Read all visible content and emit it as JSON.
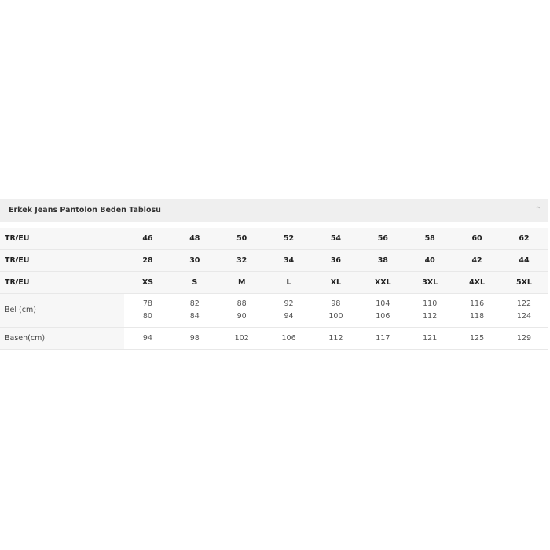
{
  "title": "Erkek Jeans Pantolon Beden Tablosu",
  "icons": {
    "toggle": "chevron-up-icon"
  },
  "rows": [
    {
      "label": "TR/EU",
      "values": [
        "46",
        "48",
        "50",
        "52",
        "54",
        "56",
        "58",
        "60",
        "62"
      ]
    },
    {
      "label": "TR/EU",
      "values": [
        "28",
        "30",
        "32",
        "34",
        "36",
        "38",
        "40",
        "42",
        "44"
      ]
    },
    {
      "label": "TR/EU",
      "values": [
        "XS",
        "S",
        "M",
        "L",
        "XL",
        "XXL",
        "3XL",
        "4XL",
        "5XL"
      ]
    },
    {
      "label": "Bel (cm)",
      "values": [
        [
          "78",
          "80"
        ],
        [
          "82",
          "84"
        ],
        [
          "88",
          "90"
        ],
        [
          "92",
          "94"
        ],
        [
          "98",
          "100"
        ],
        [
          "104",
          "106"
        ],
        [
          "110",
          "112"
        ],
        [
          "116",
          "118"
        ],
        [
          "122",
          "124"
        ]
      ]
    },
    {
      "label": "Basen(cm)",
      "values": [
        "94",
        "98",
        "102",
        "106",
        "112",
        "117",
        "121",
        "125",
        "129"
      ]
    }
  ]
}
